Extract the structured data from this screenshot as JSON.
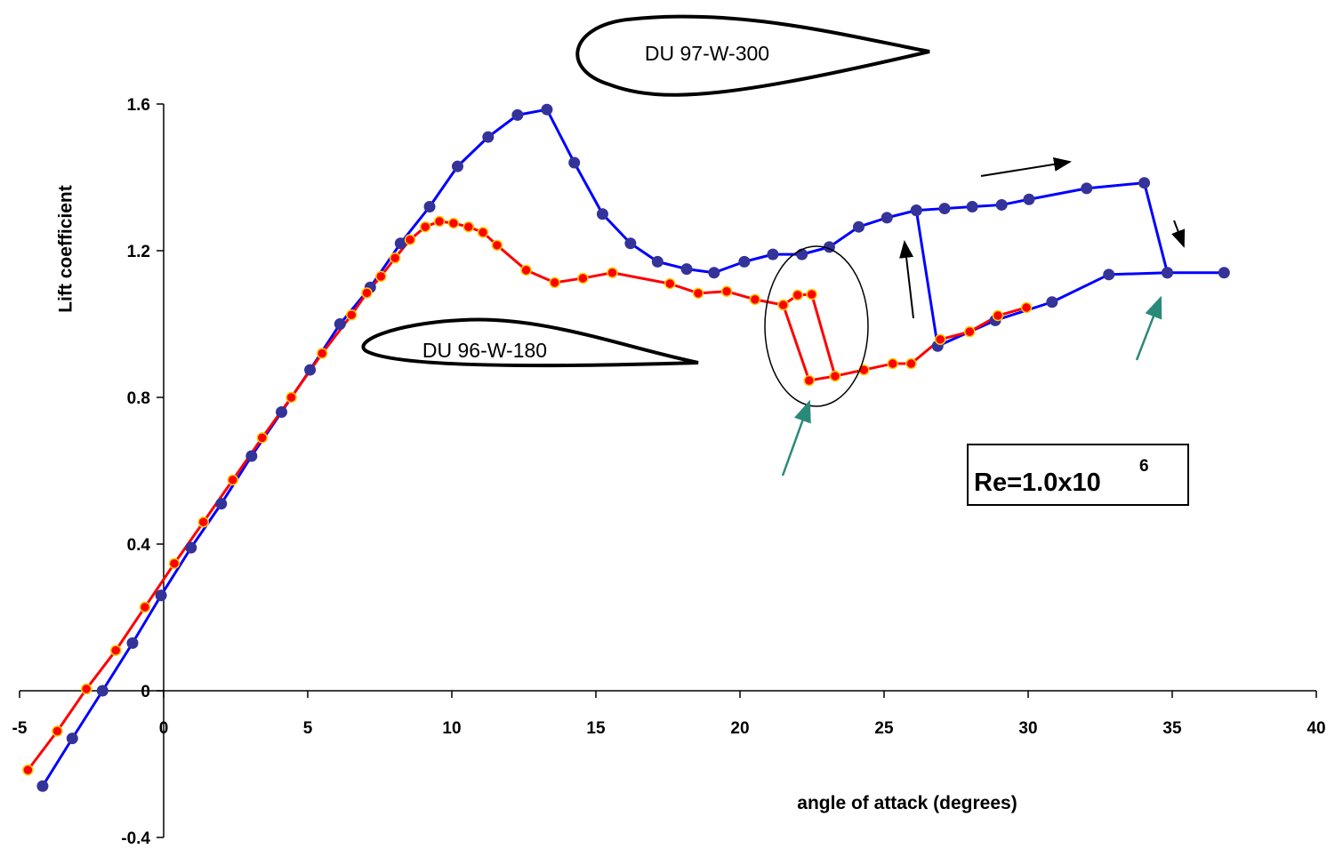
{
  "chart_data": {
    "type": "line",
    "y_label": "Lift coefficient",
    "x_label": "angle of attack (degrees)",
    "airfoil_labels": [
      "DU 97-W-300",
      "DU 96-W-180"
    ],
    "annotation": {
      "text": "Re=1.0x10",
      "superscript": "6"
    },
    "xlim": [
      -5,
      40
    ],
    "ylim": [
      -0.4,
      1.6
    ],
    "xticks": [
      -5,
      0,
      5,
      10,
      15,
      20,
      25,
      30,
      35,
      40
    ],
    "yticks": [
      -0.4,
      0,
      0.4,
      0.8,
      1.2,
      1.6
    ],
    "grid": false,
    "series": [
      {
        "color": "#0000ff",
        "marker_color": "#333399",
        "x": [
          -4.2,
          -3.17,
          -2.12,
          -1.08,
          -0.09,
          0.95,
          2.0,
          3.05,
          4.09,
          5.08,
          6.12,
          7.17,
          8.22,
          9.23,
          10.2,
          11.26,
          12.28,
          13.3,
          14.25,
          15.23,
          16.2,
          17.14,
          18.15,
          19.1,
          20.15,
          21.14,
          22.15,
          23.1,
          24.12,
          25.1,
          26.12,
          27.1,
          28.06,
          29.08,
          30.03,
          32.03,
          34.03,
          34.83,
          36.8,
          null,
          26.12,
          26.86,
          28.86,
          30.83,
          32.8,
          34.83
        ],
        "values": [
          -0.26,
          -0.13,
          0.0,
          0.13,
          0.26,
          0.39,
          0.51,
          0.64,
          0.76,
          0.875,
          1.0,
          1.1,
          1.22,
          1.32,
          1.43,
          1.51,
          1.57,
          1.585,
          1.44,
          1.3,
          1.22,
          1.17,
          1.15,
          1.14,
          1.17,
          1.19,
          1.19,
          1.21,
          1.265,
          1.29,
          1.31,
          1.315,
          1.32,
          1.325,
          1.34,
          1.37,
          1.385,
          1.14,
          1.14,
          null,
          1.31,
          0.94,
          1.01,
          1.06,
          1.135,
          1.14
        ]
      },
      {
        "color": "#ff0000",
        "marker_color": "#ff0000",
        "marker_edge": "#ffcc00",
        "x": [
          -4.71,
          -3.69,
          -2.68,
          -1.66,
          -0.65,
          0.37,
          1.38,
          2.4,
          3.42,
          4.43,
          5.5,
          6.52,
          7.05,
          7.54,
          8.03,
          8.55,
          9.08,
          9.57,
          10.06,
          10.58,
          11.08,
          11.57,
          12.58,
          13.57,
          14.55,
          15.57,
          17.57,
          18.55,
          19.54,
          20.52,
          21.5,
          22.0,
          22.49,
          23.3,
          24.3,
          25.3,
          25.94,
          26.95,
          27.97,
          28.95,
          29.94,
          null,
          21.5,
          22.4,
          23.3
        ],
        "values": [
          -0.216,
          -0.11,
          0.005,
          0.11,
          0.228,
          0.347,
          0.46,
          0.575,
          0.69,
          0.8,
          0.92,
          1.025,
          1.085,
          1.13,
          1.18,
          1.23,
          1.265,
          1.28,
          1.275,
          1.265,
          1.25,
          1.215,
          1.147,
          1.113,
          1.125,
          1.14,
          1.11,
          1.084,
          1.089,
          1.067,
          1.052,
          1.079,
          1.081,
          0.858,
          0.875,
          0.892,
          0.892,
          0.958,
          0.979,
          1.023,
          1.045,
          null,
          1.052,
          0.846,
          0.858
        ]
      }
    ]
  }
}
